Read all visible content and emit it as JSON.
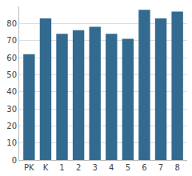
{
  "chart_data": {
    "type": "bar",
    "categories": [
      "PK",
      "K",
      "1",
      "2",
      "3",
      "4",
      "5",
      "6",
      "7",
      "8"
    ],
    "values": [
      62,
      83,
      74,
      76,
      78,
      74,
      71,
      88,
      83,
      87
    ],
    "color": "#336a90",
    "ylim": [
      0,
      90
    ],
    "yticks": [
      0,
      10,
      20,
      30,
      40,
      50,
      60,
      70,
      80
    ],
    "grid": true
  }
}
